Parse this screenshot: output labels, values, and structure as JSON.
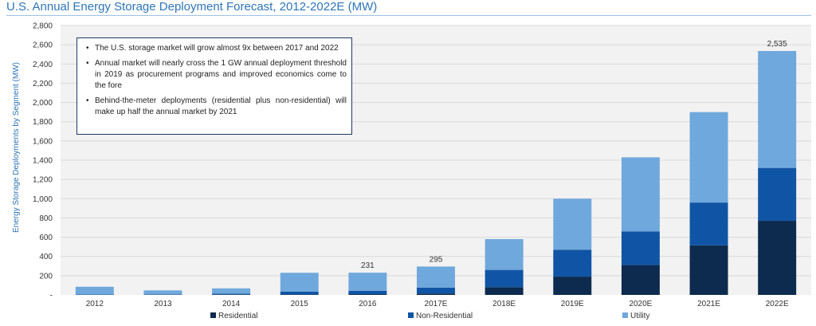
{
  "title": "U.S. Annual Energy Storage Deployment Forecast, 2012-2022E (MW)",
  "notes": [
    "The U.S. storage market will grow almost 9x between 2017 and 2022",
    "Annual market will nearly cross the 1 GW annual deployment threshold in 2019 as procurement programs and improved economics come to the fore",
    "Behind-the-meter deployments (residential plus non-residential) will make up half the annual market by 2021"
  ],
  "chart_data": {
    "type": "bar",
    "stacked": true,
    "title": "U.S. Annual Energy Storage Deployment Forecast, 2012-2022E (MW)",
    "ylabel": "Energy Storage Deployments by Segment (MW)",
    "xlabel": "",
    "ylim": [
      0,
      2800
    ],
    "yticks": [
      {
        "value": 0,
        "label": "-"
      },
      {
        "value": 200,
        "label": "200"
      },
      {
        "value": 400,
        "label": "400"
      },
      {
        "value": 600,
        "label": "600"
      },
      {
        "value": 800,
        "label": "800"
      },
      {
        "value": 1000,
        "label": "1,000"
      },
      {
        "value": 1200,
        "label": "1,200"
      },
      {
        "value": 1400,
        "label": "1,400"
      },
      {
        "value": 1600,
        "label": "1,600"
      },
      {
        "value": 1800,
        "label": "1,800"
      },
      {
        "value": 2000,
        "label": "2,000"
      },
      {
        "value": 2200,
        "label": "2,200"
      },
      {
        "value": 2400,
        "label": "2,400"
      },
      {
        "value": 2600,
        "label": "2,600"
      },
      {
        "value": 2800,
        "label": "2,800"
      }
    ],
    "grid": true,
    "legend_position": "bottom",
    "categories": [
      "2012",
      "2013",
      "2014",
      "2015",
      "2016",
      "2017E",
      "2018E",
      "2019E",
      "2020E",
      "2021E",
      "2022E"
    ],
    "series": [
      {
        "name": "Residential",
        "color": "#0d2b4e",
        "values": [
          0,
          2,
          3,
          5,
          8,
          15,
          80,
          190,
          310,
          515,
          770
        ]
      },
      {
        "name": "Non-Residential",
        "color": "#1055a5",
        "values": [
          5,
          5,
          10,
          30,
          35,
          60,
          180,
          280,
          350,
          445,
          550
        ]
      },
      {
        "name": "Utility",
        "color": "#6fa8dc",
        "values": [
          80,
          40,
          55,
          195,
          188,
          220,
          320,
          530,
          770,
          940,
          1215
        ]
      }
    ],
    "total_labels": [
      {
        "category": "2016",
        "label": "231"
      },
      {
        "category": "2017E",
        "label": "295"
      },
      {
        "category": "2022E",
        "label": "2,535"
      }
    ]
  }
}
